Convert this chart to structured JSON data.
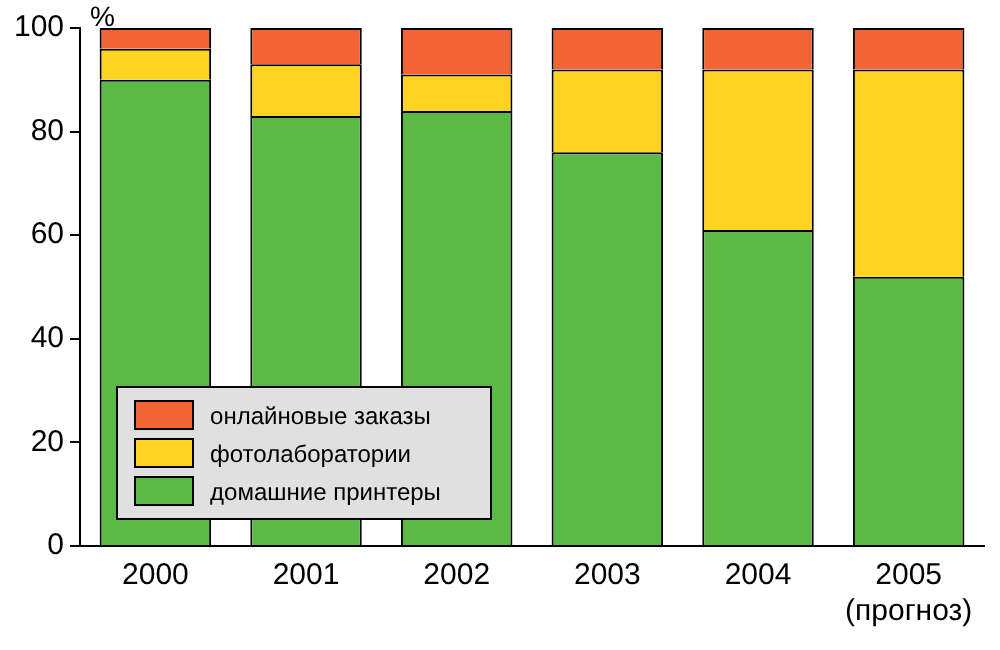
{
  "chart_data": {
    "type": "bar",
    "ylabel": "%",
    "categories": [
      "2000",
      "2001",
      "2002",
      "2003",
      "2004",
      "2005\n(прогноз)"
    ],
    "stacked": true,
    "ylim": [
      0,
      100
    ],
    "yticks": [
      0,
      20,
      40,
      60,
      80,
      100
    ],
    "grid": false,
    "legend": "bottom left",
    "series": [
      {
        "name": "домашние принтеры",
        "color": "#5cb946",
        "values": [
          90,
          83,
          84,
          76,
          61,
          52
        ]
      },
      {
        "name": "фотолаборатории",
        "color": "#ffd322",
        "values": [
          6,
          10,
          7,
          16,
          31,
          40
        ]
      },
      {
        "name": "онлайновые заказы",
        "color": "#f26434",
        "values": [
          4,
          7,
          9,
          8,
          8,
          8
        ]
      }
    ]
  }
}
